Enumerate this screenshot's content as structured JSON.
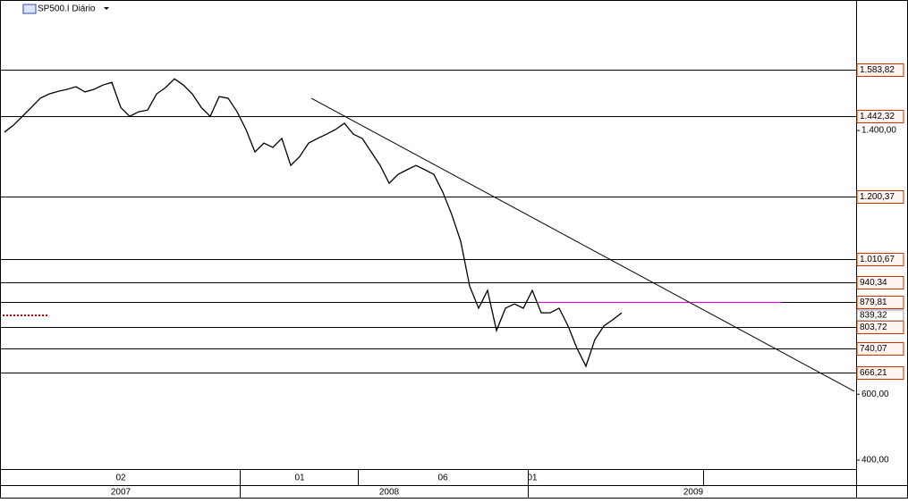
{
  "chart_data": {
    "type": "line",
    "title": "SP500.I Diário",
    "color": "#000000",
    "categories": [
      null,
      null,
      null,
      null,
      null,
      null,
      null,
      null,
      null,
      null,
      null,
      null,
      null,
      "02",
      null,
      null,
      null,
      null,
      null,
      null,
      null,
      null,
      null,
      null,
      null,
      null,
      null,
      null,
      null,
      null,
      null,
      null,
      null,
      "01",
      null,
      null,
      null,
      null,
      null,
      null,
      null,
      null,
      null,
      null,
      null,
      null,
      null,
      null,
      null,
      "06",
      null,
      null,
      null,
      null,
      null,
      null,
      null,
      null,
      null,
      "01",
      null,
      null,
      null,
      null,
      null,
      null,
      null,
      null,
      null,
      null,
      null,
      null,
      null,
      null,
      null,
      null,
      null,
      null,
      null,
      null,
      null,
      null,
      null,
      null,
      null,
      null,
      null,
      null,
      null,
      null,
      null,
      null,
      null,
      null,
      null,
      null
    ],
    "year_labels": [
      null,
      null,
      null,
      null,
      null,
      null,
      null,
      null,
      null,
      null,
      null,
      null,
      null,
      "2007",
      null,
      null,
      null,
      null,
      null,
      null,
      null,
      null,
      null,
      null,
      null,
      null,
      null,
      null,
      null,
      null,
      null,
      null,
      null,
      null,
      null,
      null,
      null,
      null,
      null,
      null,
      null,
      null,
      null,
      "2008",
      null,
      null,
      null,
      null,
      null,
      null,
      null,
      null,
      null,
      null,
      null,
      null,
      null,
      null,
      null,
      null,
      null,
      null,
      null,
      null,
      null,
      null,
      null,
      null,
      null,
      null,
      null,
      null,
      null,
      null,
      null,
      null,
      null,
      "2009",
      null,
      null,
      null,
      null,
      null,
      null,
      null,
      null,
      null,
      null,
      null,
      null,
      null,
      null,
      null,
      null,
      null,
      null
    ],
    "values": [
      1395,
      1416,
      1443,
      1470,
      1498,
      1511,
      1519,
      1525,
      1533,
      1517,
      1525,
      1538,
      1546,
      1470,
      1443,
      1457,
      1462,
      1511,
      1530,
      1557,
      1538,
      1511,
      1470,
      1443,
      1503,
      1498,
      1457,
      1403,
      1335,
      1362,
      1349,
      1376,
      1294,
      1321,
      1362,
      1376,
      1389,
      1403,
      1422,
      1389,
      1376,
      1335,
      1294,
      1240,
      1267,
      1281,
      1294,
      1281,
      1267,
      1213,
      1145,
      1064,
      928,
      861,
      915,
      793,
      861,
      874,
      861,
      915,
      847,
      847,
      861,
      807,
      739,
      685,
      766,
      807,
      826,
      847,
      null,
      null,
      null,
      null,
      null,
      null,
      null,
      null,
      null,
      null,
      null,
      null,
      null,
      null,
      null,
      null,
      null,
      null,
      null,
      null,
      null,
      null,
      null,
      null,
      null,
      null
    ],
    "ylim": [
      373,
      1796
    ],
    "yticks": [
      {
        "value": 1400,
        "label": "1.400,00"
      },
      {
        "value": 600,
        "label": "600,00"
      },
      {
        "value": 400,
        "label": "400,00"
      }
    ],
    "levels": [
      {
        "value": 1583.82,
        "label": "1.583,82"
      },
      {
        "value": 1442.32,
        "label": "1.442,32"
      },
      {
        "value": 1200.37,
        "label": "1.200,37"
      },
      {
        "value": 1010.67,
        "label": "1.010,67"
      },
      {
        "value": 940.34,
        "label": "940,34"
      },
      {
        "value": 879.81,
        "label": "879,81"
      },
      {
        "value": 803.72,
        "label": "803,72"
      },
      {
        "value": 740.07,
        "label": "740,07"
      },
      {
        "value": 666.21,
        "label": "666,21"
      }
    ],
    "level_color": "#000000",
    "last_price": {
      "value": 839.32,
      "label": "839,32",
      "color": "#cc0000"
    },
    "trendline": {
      "start": [
        34.3,
        1498
      ],
      "end": [
        95,
        609
      ],
      "color": "#000000"
    },
    "highlight_line": {
      "value": 879,
      "from": 59.5,
      "to": 86.8,
      "color": "#ff00ff"
    }
  }
}
